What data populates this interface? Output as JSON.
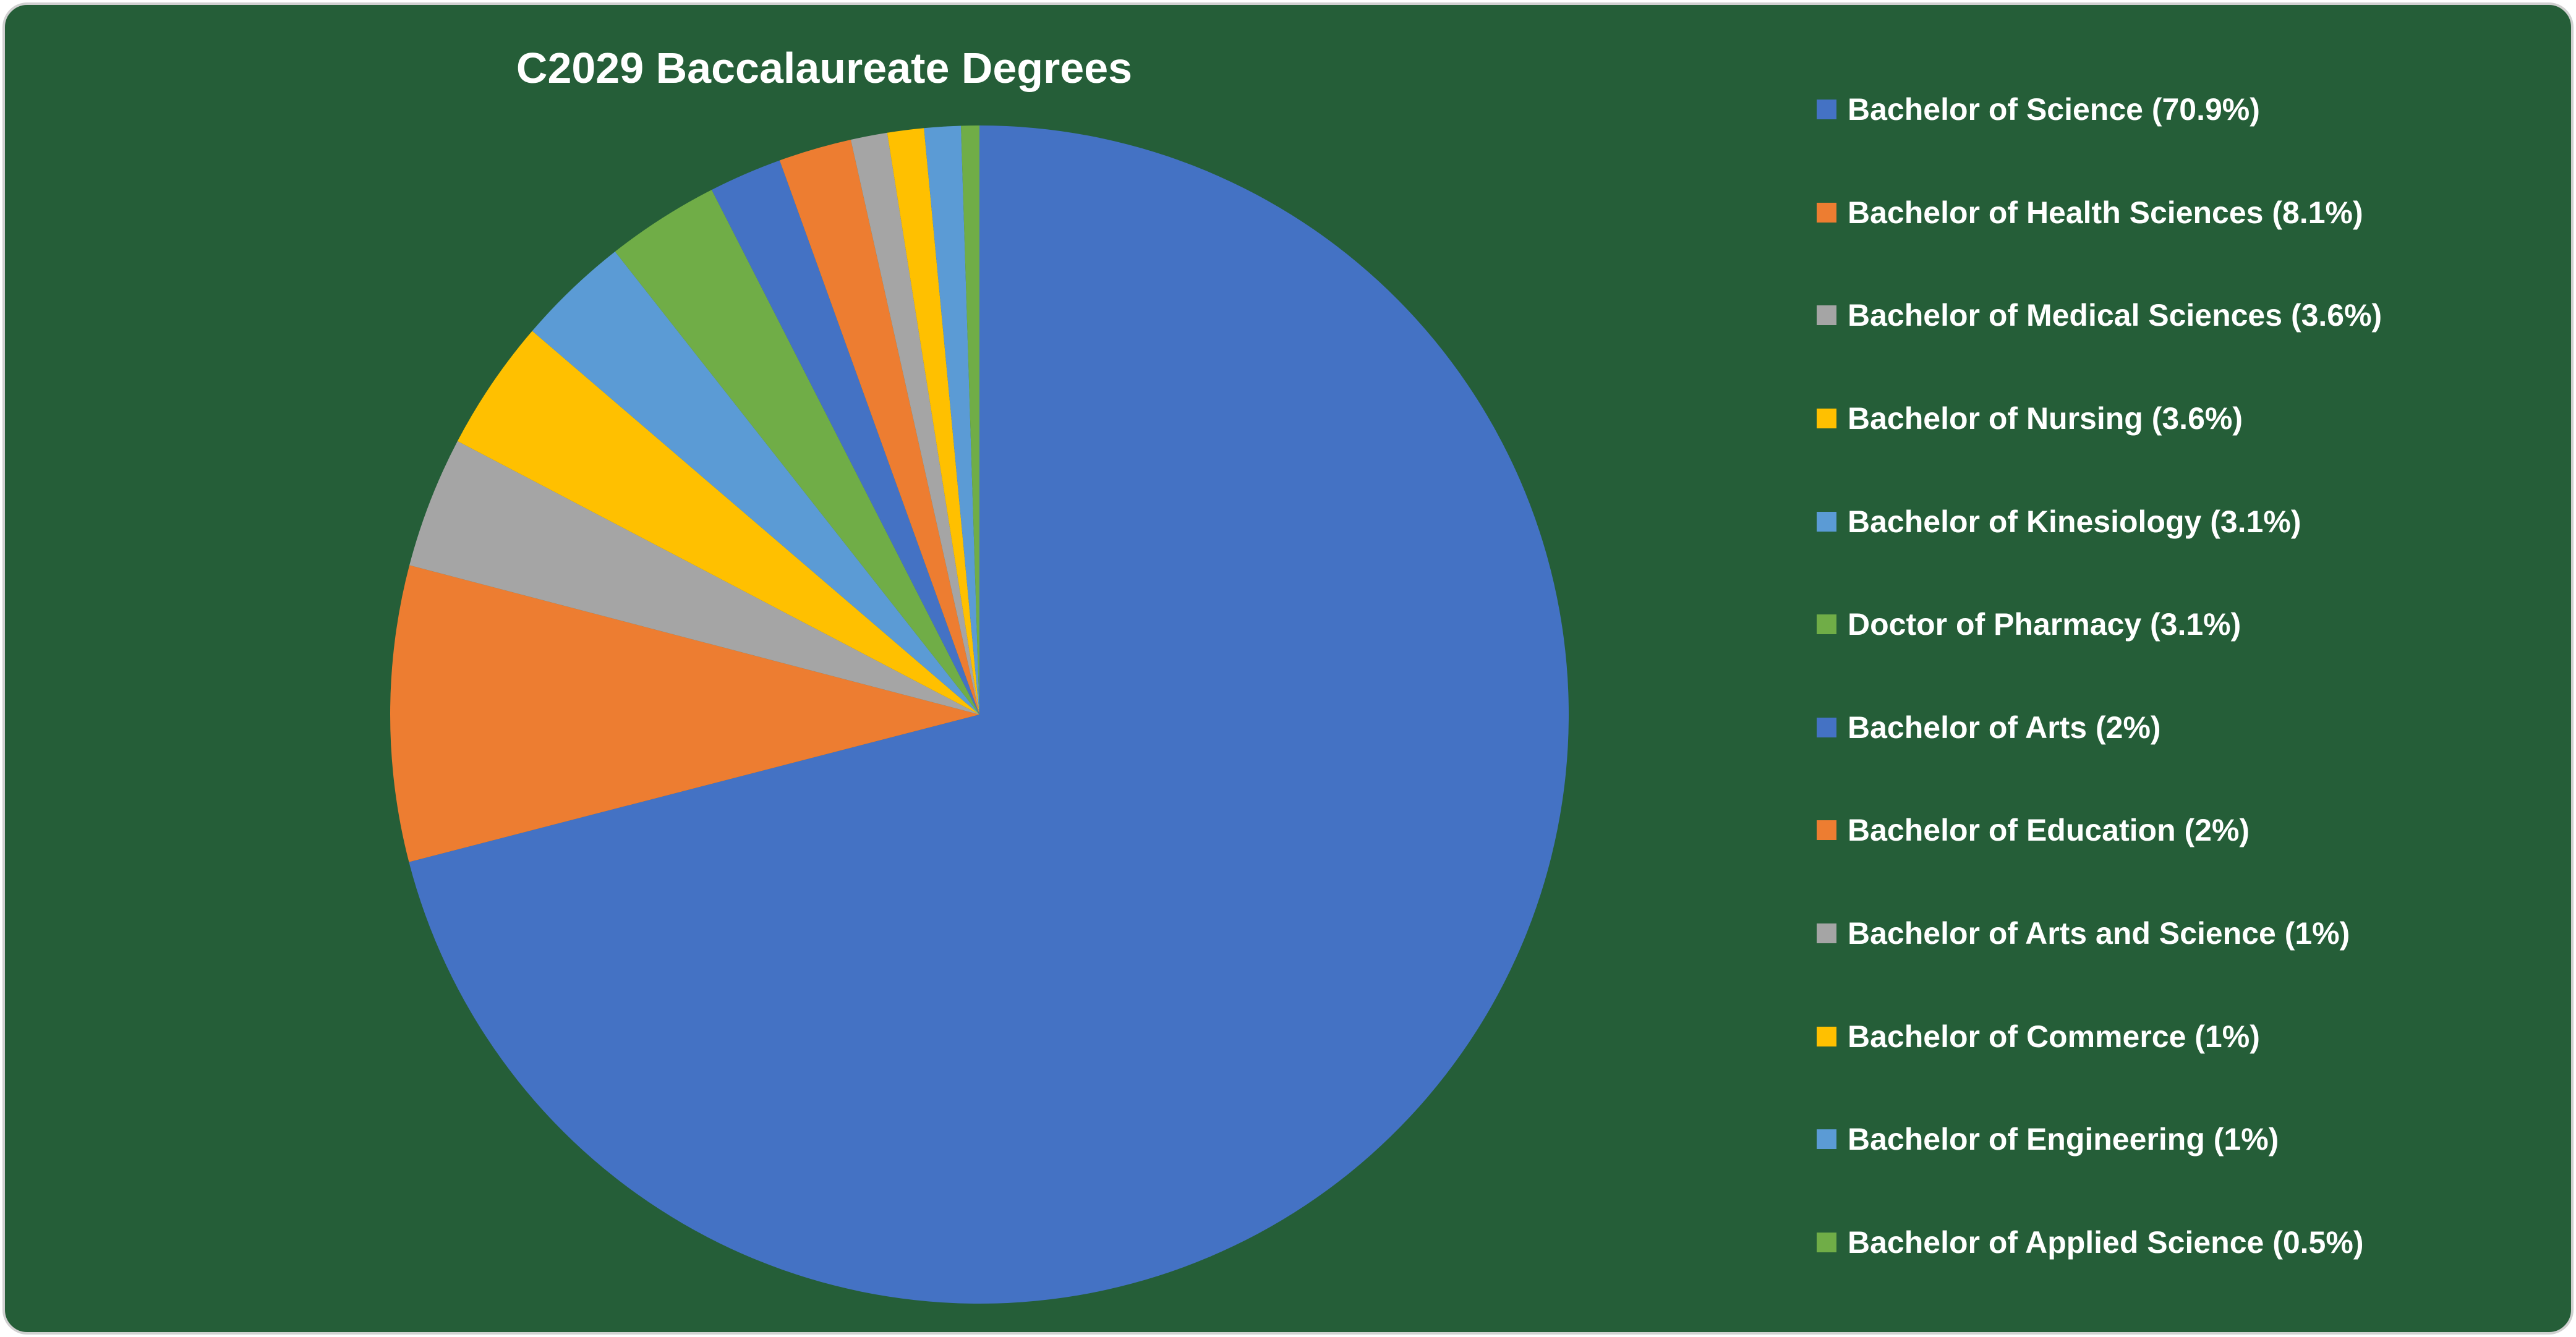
{
  "chart_data": {
    "type": "pie",
    "title": "C2029 Baccalaureate Degrees",
    "start_angle": "top",
    "direction": "clockwise",
    "legend_position": "right",
    "background_color": "#255e38",
    "slices": [
      {
        "label": "Bachelor of Science (70.9%)",
        "value": 70.9,
        "color": "#4472c4"
      },
      {
        "label": "Bachelor of Health Sciences (8.1%)",
        "value": 8.1,
        "color": "#ed7d31"
      },
      {
        "label": "Bachelor of Medical Sciences (3.6%)",
        "value": 3.6,
        "color": "#a5a5a5"
      },
      {
        "label": "Bachelor of Nursing (3.6%)",
        "value": 3.6,
        "color": "#ffc000"
      },
      {
        "label": "Bachelor of Kinesiology (3.1%)",
        "value": 3.1,
        "color": "#5b9bd5"
      },
      {
        "label": "Doctor of Pharmacy (3.1%)",
        "value": 3.1,
        "color": "#70ad47"
      },
      {
        "label": "Bachelor of Arts (2%)",
        "value": 2,
        "color": "#4472c4"
      },
      {
        "label": "Bachelor of Education (2%)",
        "value": 2,
        "color": "#ed7d31"
      },
      {
        "label": "Bachelor of Arts and Science (1%)",
        "value": 1,
        "color": "#a5a5a5"
      },
      {
        "label": "Bachelor of Commerce (1%)",
        "value": 1,
        "color": "#ffc000"
      },
      {
        "label": "Bachelor of Engineering (1%)",
        "value": 1,
        "color": "#5b9bd5"
      },
      {
        "label": "Bachelor of Applied Science (0.5%)",
        "value": 0.5,
        "color": "#70ad47"
      }
    ]
  }
}
